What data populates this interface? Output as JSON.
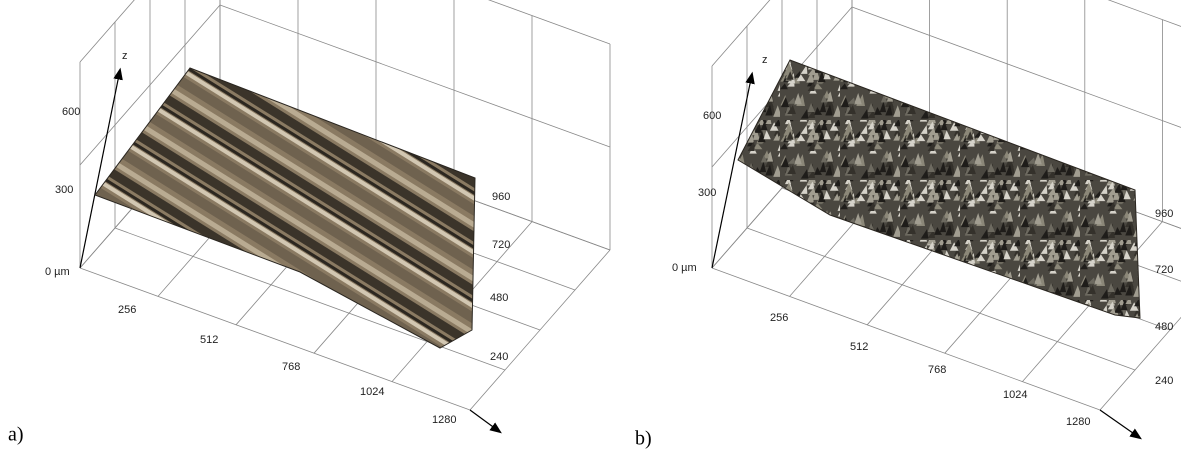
{
  "panels": [
    {
      "label": "a)",
      "z_axis": "z",
      "z_ticks": [
        "0 µm",
        300,
        600
      ],
      "x_ticks": [
        256,
        512,
        768,
        1024,
        1280
      ],
      "y_ticks": [
        960,
        720,
        480,
        240
      ]
    },
    {
      "label": "b)",
      "z_axis": "z",
      "z_ticks": [
        "0 µm",
        300,
        600
      ],
      "x_ticks": [
        256,
        512,
        768,
        1024,
        1280
      ],
      "y_ticks": [
        960,
        720,
        480,
        240
      ]
    }
  ]
}
